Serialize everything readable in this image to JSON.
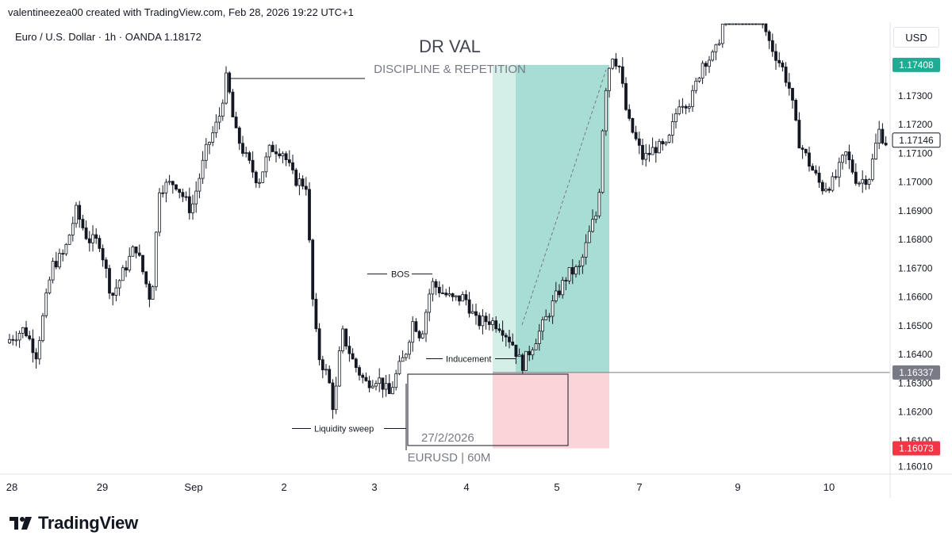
{
  "header": {
    "attribution": "valentineezea00 created with TradingView.com, Feb 28, 2026 19:22 UTC+1",
    "symbol_line": "Euro / U.S. Dollar · 1h · OANDA  1.18172",
    "currency": "USD"
  },
  "brand": {
    "name": "TradingView",
    "logo_icon": "tradingview-logo-icon"
  },
  "chart_data": {
    "type": "candlestick",
    "title": "DR VAL",
    "subtitle": "DISCIPLINE & REPETITION",
    "symbol": "EURUSD | 60M",
    "date_label": "27/2/2026",
    "ylim": [
      1.1597,
      1.1785
    ],
    "yticks": [
      "1.17300",
      "1.17200",
      "1.17100",
      "1.17000",
      "1.16900",
      "1.16800",
      "1.16700",
      "1.16600",
      "1.16500",
      "1.16400",
      "1.16300",
      "1.16200",
      "1.16100",
      "1.16010"
    ],
    "xticks": [
      "28",
      "29",
      "Sep",
      "2",
      "3",
      "4",
      "5",
      "7",
      "9",
      "10"
    ],
    "price_tags": [
      {
        "label": "1.17408",
        "value": 1.17408,
        "style": "target",
        "color": "#22ab94"
      },
      {
        "label": "1.17146",
        "value": 1.17146,
        "style": "current",
        "color": "#131722"
      },
      {
        "label": "1.16337",
        "value": 1.16337,
        "style": "entry",
        "color": "#787b86"
      },
      {
        "label": "1.16073",
        "value": 1.16073,
        "style": "stop",
        "color": "#f23645"
      }
    ],
    "annotations": [
      {
        "text": "BOS",
        "price": 1.1668
      },
      {
        "text": "Inducement",
        "price": 1.16385
      },
      {
        "text": "Liquidity sweep",
        "price": 1.16142
      }
    ],
    "position": {
      "entry": 1.16337,
      "target": 1.17408,
      "stop": 1.16073
    },
    "colors": {
      "up": "#131722",
      "down": "#131722",
      "profit": "#a8ddd3",
      "loss": "#fad4d8",
      "grid": "#f0f3fa"
    },
    "series": [
      {
        "name": "EURUSD",
        "ohlc": []
      }
    ]
  }
}
